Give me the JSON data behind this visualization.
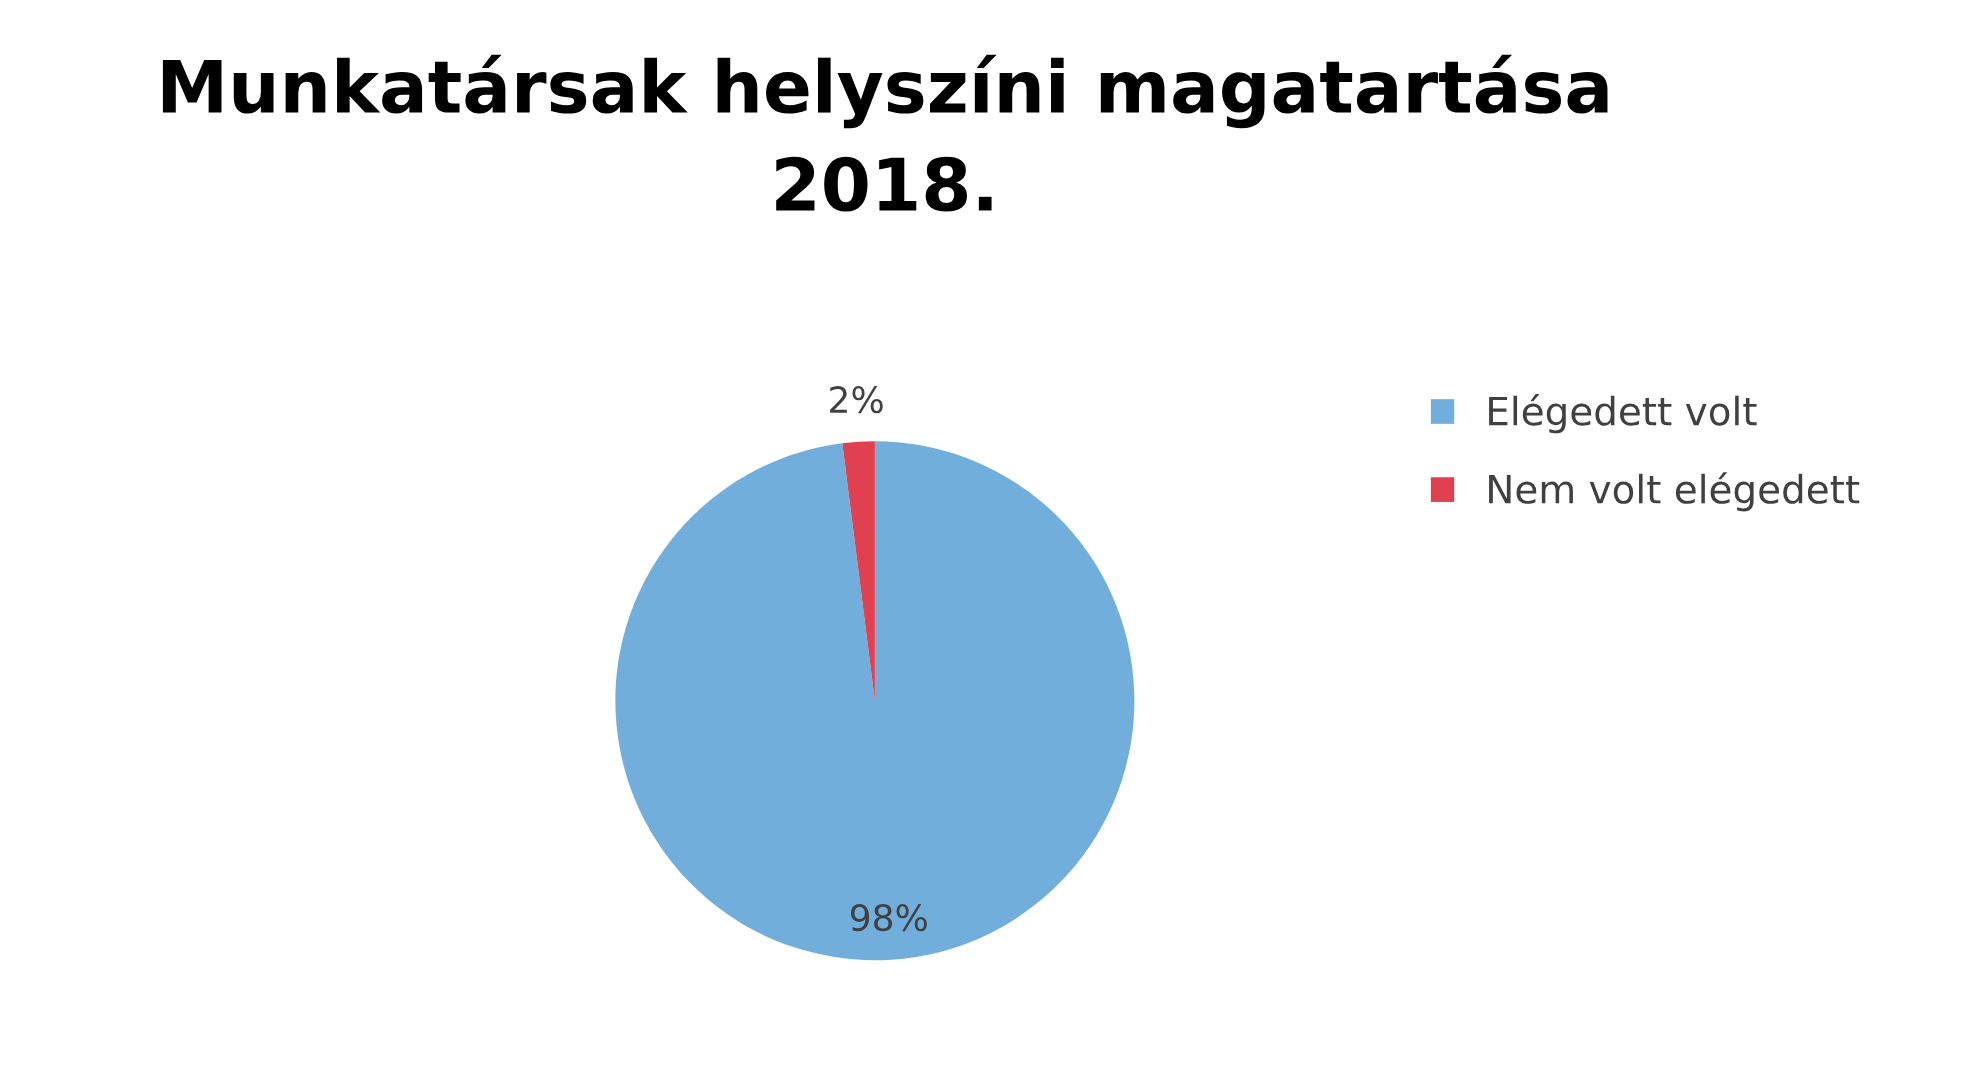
{
  "chart_data": {
    "type": "pie",
    "title": "Munkatársak helyszíni magatartása\n2018.",
    "categories": [
      "Elégedett volt",
      "Nem volt elégedett"
    ],
    "values": [
      98,
      2
    ],
    "colors": [
      "#72aedb",
      "#e0404f"
    ],
    "value_labels": [
      "98%",
      "2%"
    ],
    "legend": "right"
  }
}
